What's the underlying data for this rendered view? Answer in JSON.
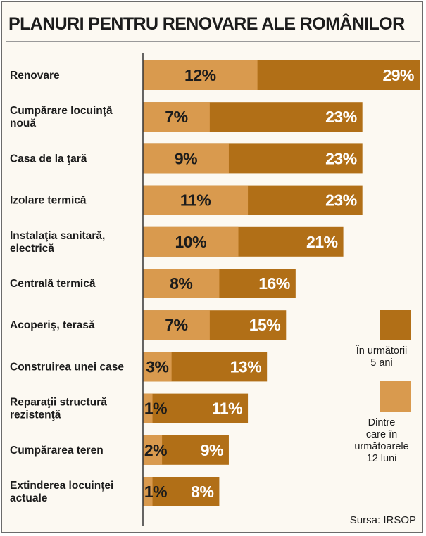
{
  "title": "PLANURI PENTRU RENOVARE ALE ROMÂNILOR",
  "source": "Sursa: IRSOP",
  "colors": {
    "total": "#b16f17",
    "subset": "#d99a4e",
    "subset_text": "#1c1c1c",
    "total_text": "#ffffff",
    "axis": "#333333"
  },
  "chart_data": {
    "type": "bar",
    "orientation": "horizontal",
    "categories": [
      [
        "Renovare"
      ],
      [
        "Cumpărare locuinţă",
        "nouă"
      ],
      [
        "Casa de la ţară"
      ],
      [
        "Izolare termică"
      ],
      [
        "Instalaţia sanitară,",
        "electrică"
      ],
      [
        "Centrală termică"
      ],
      [
        "Acoperiş, terasă"
      ],
      [
        "Construirea unei case"
      ],
      [
        "Reparaţii structură",
        "rezistenţă"
      ],
      [
        "Cumpărarea teren"
      ],
      [
        "Extinderea locuinţei",
        "actuale"
      ]
    ],
    "series": [
      {
        "name": "În următorii 5 ani",
        "values": [
          29,
          23,
          23,
          23,
          21,
          16,
          15,
          13,
          11,
          9,
          8
        ],
        "labels": [
          "29%",
          "23%",
          "23%",
          "23%",
          "21%",
          "16%",
          "15%",
          "13%",
          "11%",
          "9%",
          "8%"
        ]
      },
      {
        "name": "Dintre care în următoarele 12 luni",
        "values": [
          12,
          7,
          9,
          11,
          10,
          8,
          7,
          3,
          1,
          2,
          1
        ],
        "labels": [
          "12%",
          "7%",
          "9%",
          "11%",
          "10%",
          "8%",
          "7%",
          "3%",
          "1%",
          "2%",
          "1%"
        ]
      }
    ],
    "xlim": [
      0,
      29
    ],
    "legend": [
      {
        "lines": [
          "În următorii",
          "5 ani"
        ]
      },
      {
        "lines": [
          "Dintre",
          "care în",
          "următoarele",
          "12 luni"
        ]
      }
    ],
    "legend_position": "right"
  }
}
